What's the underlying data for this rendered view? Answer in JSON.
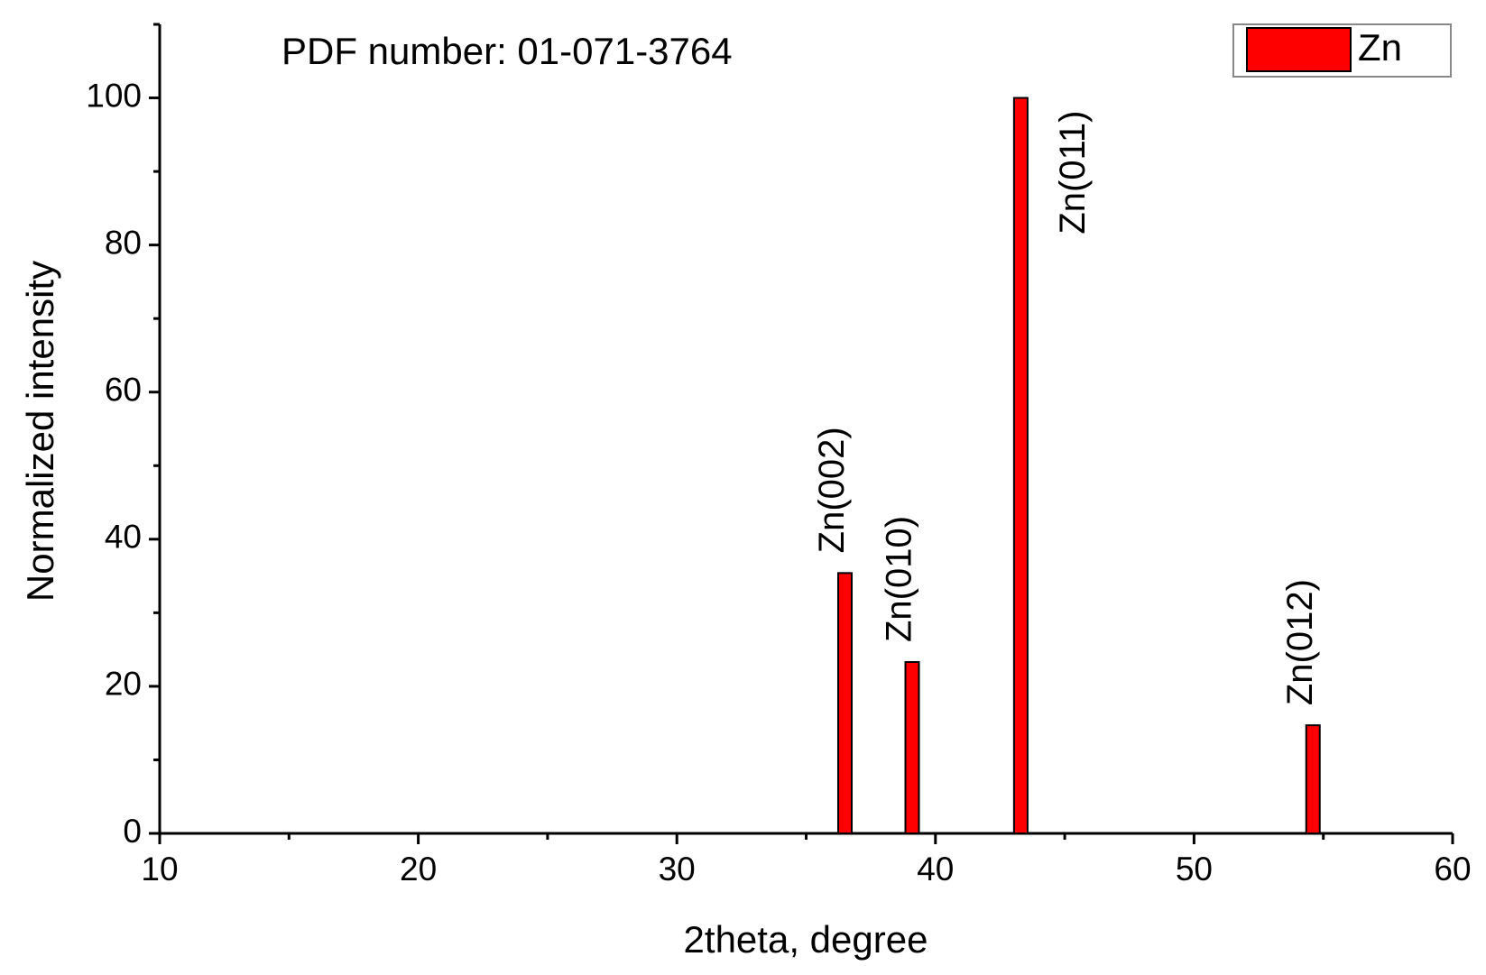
{
  "chart_data": {
    "type": "bar",
    "annotation": "PDF number: 01-071-3764",
    "x_label": "2theta, degree",
    "y_label": "Normalized intensity",
    "x": [
      36.5,
      39.1,
      43.3,
      54.6
    ],
    "series": [
      {
        "name": "Zn",
        "color": "#ff0000",
        "values": [
          35.4,
          23.3,
          100,
          14.7
        ]
      }
    ],
    "peak_labels": [
      "Zn(002)",
      "Zn(010)",
      "Zn(011)",
      "Zn(012)"
    ],
    "xlim": [
      10,
      60
    ],
    "xticks": [
      10,
      20,
      30,
      40,
      50,
      60
    ],
    "xminorticks": [
      15,
      25,
      35,
      45,
      55
    ],
    "ylim": [
      0,
      110
    ],
    "yticks": [
      0,
      20,
      40,
      60,
      80,
      100
    ],
    "yminorticks": [
      10,
      30,
      50,
      70,
      90,
      110
    ],
    "legend": "upper right",
    "grid": false
  }
}
